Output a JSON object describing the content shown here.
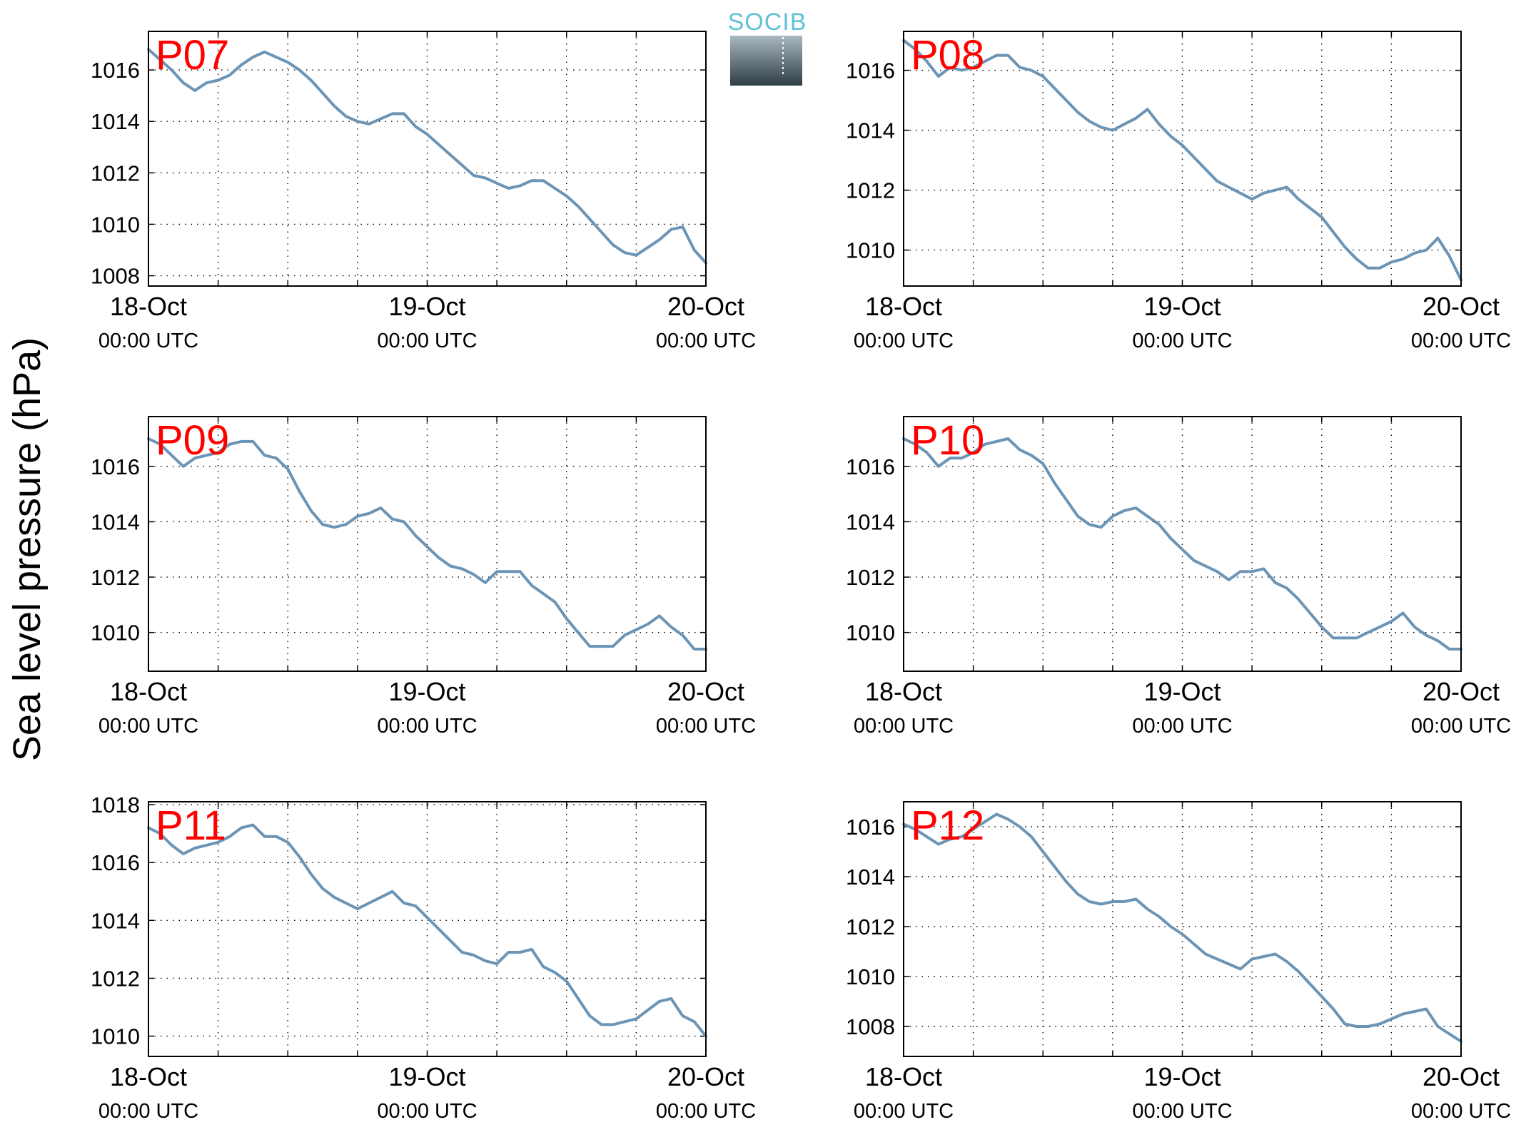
{
  "figure": {
    "ylabel": "Sea level pressure (hPa)",
    "logo_text": "SOCIB",
    "colors": {
      "series": "#6b94b5",
      "panel_label": "#ff0000",
      "logo_top": "#5fc3d6",
      "logo_bottom": "#2f3d47"
    }
  },
  "chart_data": [
    {
      "type": "line",
      "name": "P07",
      "ylim": [
        1007.6,
        1017.5
      ],
      "yticks": [
        1008,
        1010,
        1012,
        1014,
        1016
      ],
      "x_range_hours": [
        0,
        48
      ],
      "xticks": [
        {
          "hour": 0,
          "date": "18-Oct",
          "time": "00:00 UTC"
        },
        {
          "hour": 24,
          "date": "19-Oct",
          "time": "00:00 UTC"
        },
        {
          "hour": 48,
          "date": "20-Oct",
          "time": "00:00 UTC"
        }
      ],
      "grid": true,
      "x": [
        0,
        1,
        2,
        3,
        4,
        5,
        6,
        7,
        8,
        9,
        10,
        11,
        12,
        13,
        14,
        15,
        16,
        17,
        18,
        19,
        20,
        21,
        22,
        23,
        24,
        25,
        26,
        27,
        28,
        29,
        30,
        31,
        32,
        33,
        34,
        35,
        36,
        37,
        38,
        39,
        40,
        41,
        42,
        43,
        44,
        45,
        46,
        47,
        48
      ],
      "y": [
        1016.8,
        1016.4,
        1016.0,
        1015.5,
        1015.2,
        1015.5,
        1015.6,
        1015.8,
        1016.2,
        1016.5,
        1016.7,
        1016.5,
        1016.3,
        1016.0,
        1015.6,
        1015.1,
        1014.6,
        1014.2,
        1014.0,
        1013.9,
        1014.1,
        1014.3,
        1014.3,
        1013.8,
        1013.5,
        1013.1,
        1012.7,
        1012.3,
        1011.9,
        1011.8,
        1011.6,
        1011.4,
        1011.5,
        1011.7,
        1011.7,
        1011.4,
        1011.1,
        1010.7,
        1010.2,
        1009.7,
        1009.2,
        1008.9,
        1008.8,
        1009.1,
        1009.4,
        1009.8,
        1009.9,
        1009.0,
        1008.5
      ]
    },
    {
      "type": "line",
      "name": "P08",
      "ylim": [
        1008.8,
        1017.3
      ],
      "yticks": [
        1010,
        1012,
        1014,
        1016
      ],
      "x_range_hours": [
        0,
        48
      ],
      "xticks": [
        {
          "hour": 0,
          "date": "18-Oct",
          "time": "00:00 UTC"
        },
        {
          "hour": 24,
          "date": "19-Oct",
          "time": "00:00 UTC"
        },
        {
          "hour": 48,
          "date": "20-Oct",
          "time": "00:00 UTC"
        }
      ],
      "grid": true,
      "x": [
        0,
        1,
        2,
        3,
        4,
        5,
        6,
        7,
        8,
        9,
        10,
        11,
        12,
        13,
        14,
        15,
        16,
        17,
        18,
        19,
        20,
        21,
        22,
        23,
        24,
        25,
        26,
        27,
        28,
        29,
        30,
        31,
        32,
        33,
        34,
        35,
        36,
        37,
        38,
        39,
        40,
        41,
        42,
        43,
        44,
        45,
        46,
        47,
        48
      ],
      "y": [
        1017.0,
        1016.7,
        1016.3,
        1015.8,
        1016.1,
        1016.0,
        1016.1,
        1016.3,
        1016.5,
        1016.5,
        1016.1,
        1016.0,
        1015.8,
        1015.4,
        1015.0,
        1014.6,
        1014.3,
        1014.1,
        1014.0,
        1014.2,
        1014.4,
        1014.7,
        1014.2,
        1013.8,
        1013.5,
        1013.1,
        1012.7,
        1012.3,
        1012.1,
        1011.9,
        1011.7,
        1011.9,
        1012.0,
        1012.1,
        1011.7,
        1011.4,
        1011.1,
        1010.6,
        1010.1,
        1009.7,
        1009.4,
        1009.4,
        1009.6,
        1009.7,
        1009.9,
        1010.0,
        1010.4,
        1009.8,
        1009.0
      ]
    },
    {
      "type": "line",
      "name": "P09",
      "ylim": [
        1008.6,
        1017.8
      ],
      "yticks": [
        1010,
        1012,
        1014,
        1016
      ],
      "x_range_hours": [
        0,
        48
      ],
      "xticks": [
        {
          "hour": 0,
          "date": "18-Oct",
          "time": "00:00 UTC"
        },
        {
          "hour": 24,
          "date": "19-Oct",
          "time": "00:00 UTC"
        },
        {
          "hour": 48,
          "date": "20-Oct",
          "time": "00:00 UTC"
        }
      ],
      "grid": true,
      "x": [
        0,
        1,
        2,
        3,
        4,
        5,
        6,
        7,
        8,
        9,
        10,
        11,
        12,
        13,
        14,
        15,
        16,
        17,
        18,
        19,
        20,
        21,
        22,
        23,
        24,
        25,
        26,
        27,
        28,
        29,
        30,
        31,
        32,
        33,
        34,
        35,
        36,
        37,
        38,
        39,
        40,
        41,
        42,
        43,
        44,
        45,
        46,
        47,
        48
      ],
      "y": [
        1017.0,
        1016.8,
        1016.4,
        1016.0,
        1016.3,
        1016.4,
        1016.5,
        1016.8,
        1016.9,
        1016.9,
        1016.4,
        1016.3,
        1015.9,
        1015.1,
        1014.4,
        1013.9,
        1013.8,
        1013.9,
        1014.2,
        1014.3,
        1014.5,
        1014.1,
        1014.0,
        1013.5,
        1013.1,
        1012.7,
        1012.4,
        1012.3,
        1012.1,
        1011.8,
        1012.2,
        1012.2,
        1012.2,
        1011.7,
        1011.4,
        1011.1,
        1010.5,
        1010.0,
        1009.5,
        1009.5,
        1009.5,
        1009.9,
        1010.1,
        1010.3,
        1010.6,
        1010.2,
        1009.9,
        1009.4,
        1009.4
      ]
    },
    {
      "type": "line",
      "name": "P10",
      "ylim": [
        1008.6,
        1017.8
      ],
      "yticks": [
        1010,
        1012,
        1014,
        1016
      ],
      "x_range_hours": [
        0,
        48
      ],
      "xticks": [
        {
          "hour": 0,
          "date": "18-Oct",
          "time": "00:00 UTC"
        },
        {
          "hour": 24,
          "date": "19-Oct",
          "time": "00:00 UTC"
        },
        {
          "hour": 48,
          "date": "20-Oct",
          "time": "00:00 UTC"
        }
      ],
      "grid": true,
      "x": [
        0,
        1,
        2,
        3,
        4,
        5,
        6,
        7,
        8,
        9,
        10,
        11,
        12,
        13,
        14,
        15,
        16,
        17,
        18,
        19,
        20,
        21,
        22,
        23,
        24,
        25,
        26,
        27,
        28,
        29,
        30,
        31,
        32,
        33,
        34,
        35,
        36,
        37,
        38,
        39,
        40,
        41,
        42,
        43,
        44,
        45,
        46,
        47,
        48
      ],
      "y": [
        1017.0,
        1016.8,
        1016.5,
        1016.0,
        1016.3,
        1016.3,
        1016.5,
        1016.8,
        1016.9,
        1017.0,
        1016.6,
        1016.4,
        1016.1,
        1015.4,
        1014.8,
        1014.2,
        1013.9,
        1013.8,
        1014.2,
        1014.4,
        1014.5,
        1014.2,
        1013.9,
        1013.4,
        1013.0,
        1012.6,
        1012.4,
        1012.2,
        1011.9,
        1012.2,
        1012.2,
        1012.3,
        1011.8,
        1011.6,
        1011.2,
        1010.7,
        1010.2,
        1009.8,
        1009.8,
        1009.8,
        1010.0,
        1010.2,
        1010.4,
        1010.7,
        1010.2,
        1009.9,
        1009.7,
        1009.4,
        1009.4
      ]
    },
    {
      "type": "line",
      "name": "P11",
      "ylim": [
        1009.3,
        1018.1
      ],
      "yticks": [
        1010,
        1012,
        1014,
        1016,
        1018
      ],
      "x_range_hours": [
        0,
        48
      ],
      "xticks": [
        {
          "hour": 0,
          "date": "18-Oct",
          "time": "00:00 UTC"
        },
        {
          "hour": 24,
          "date": "19-Oct",
          "time": "00:00 UTC"
        },
        {
          "hour": 48,
          "date": "20-Oct",
          "time": "00:00 UTC"
        }
      ],
      "grid": true,
      "x": [
        0,
        1,
        2,
        3,
        4,
        5,
        6,
        7,
        8,
        9,
        10,
        11,
        12,
        13,
        14,
        15,
        16,
        17,
        18,
        19,
        20,
        21,
        22,
        23,
        24,
        25,
        26,
        27,
        28,
        29,
        30,
        31,
        32,
        33,
        34,
        35,
        36,
        37,
        38,
        39,
        40,
        41,
        42,
        43,
        44,
        45,
        46,
        47,
        48
      ],
      "y": [
        1017.2,
        1017.0,
        1016.6,
        1016.3,
        1016.5,
        1016.6,
        1016.7,
        1016.9,
        1017.2,
        1017.3,
        1016.9,
        1016.9,
        1016.7,
        1016.2,
        1015.6,
        1015.1,
        1014.8,
        1014.6,
        1014.4,
        1014.6,
        1014.8,
        1015.0,
        1014.6,
        1014.5,
        1014.1,
        1013.7,
        1013.3,
        1012.9,
        1012.8,
        1012.6,
        1012.5,
        1012.9,
        1012.9,
        1013.0,
        1012.4,
        1012.2,
        1011.9,
        1011.3,
        1010.7,
        1010.4,
        1010.4,
        1010.5,
        1010.6,
        1010.9,
        1011.2,
        1011.3,
        1010.7,
        1010.5,
        1010.0
      ]
    },
    {
      "type": "line",
      "name": "P12",
      "ylim": [
        1006.8,
        1017.0
      ],
      "yticks": [
        1008,
        1010,
        1012,
        1014,
        1016
      ],
      "x_range_hours": [
        0,
        48
      ],
      "xticks": [
        {
          "hour": 0,
          "date": "18-Oct",
          "time": "00:00 UTC"
        },
        {
          "hour": 24,
          "date": "19-Oct",
          "time": "00:00 UTC"
        },
        {
          "hour": 48,
          "date": "20-Oct",
          "time": "00:00 UTC"
        }
      ],
      "grid": true,
      "x": [
        0,
        1,
        2,
        3,
        4,
        5,
        6,
        7,
        8,
        9,
        10,
        11,
        12,
        13,
        14,
        15,
        16,
        17,
        18,
        19,
        20,
        21,
        22,
        23,
        24,
        25,
        26,
        27,
        28,
        29,
        30,
        31,
        32,
        33,
        34,
        35,
        36,
        37,
        38,
        39,
        40,
        41,
        42,
        43,
        44,
        45,
        46,
        47,
        48
      ],
      "y": [
        1016.1,
        1015.9,
        1015.6,
        1015.3,
        1015.5,
        1015.6,
        1015.9,
        1016.2,
        1016.5,
        1016.3,
        1016.0,
        1015.6,
        1015.0,
        1014.4,
        1013.8,
        1013.3,
        1013.0,
        1012.9,
        1013.0,
        1013.0,
        1013.1,
        1012.7,
        1012.4,
        1012.0,
        1011.7,
        1011.3,
        1010.9,
        1010.7,
        1010.5,
        1010.3,
        1010.7,
        1010.8,
        1010.9,
        1010.6,
        1010.2,
        1009.7,
        1009.2,
        1008.7,
        1008.1,
        1008.0,
        1008.0,
        1008.1,
        1008.3,
        1008.5,
        1008.6,
        1008.7,
        1008.0,
        1007.7,
        1007.4
      ]
    }
  ]
}
